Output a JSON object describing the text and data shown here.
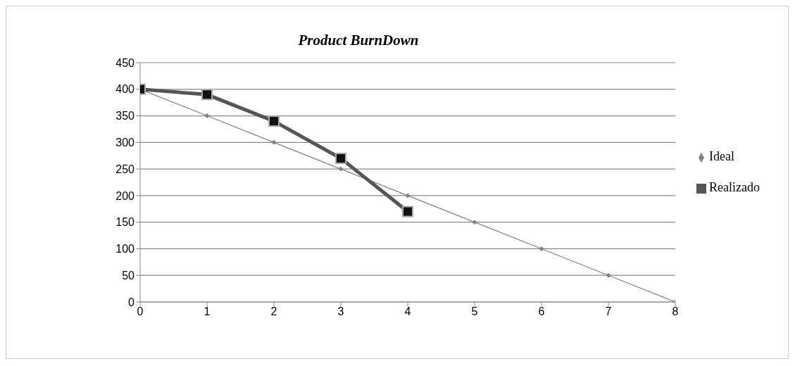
{
  "chart_data": {
    "type": "line",
    "title": "Product BurnDown",
    "x": [
      0,
      1,
      2,
      3,
      4,
      5,
      6,
      7,
      8
    ],
    "series": [
      {
        "name": "Ideal",
        "color": "#808080",
        "marker": "diamond",
        "values": [
          400,
          350,
          300,
          250,
          200,
          150,
          100,
          50,
          0
        ]
      },
      {
        "name": "Realizado",
        "color": "#555555",
        "marker": "square",
        "values": [
          400,
          390,
          340,
          270,
          170,
          null,
          null,
          null,
          null
        ]
      }
    ],
    "xlim": [
      0,
      8
    ],
    "xticks": [
      0,
      1,
      2,
      3,
      4,
      5,
      6,
      7,
      8
    ],
    "ylim": [
      0,
      450
    ],
    "yticks": [
      0,
      50,
      100,
      150,
      200,
      250,
      300,
      350,
      400,
      450
    ],
    "grid": "y",
    "legend": "right",
    "line_style": "solid"
  }
}
